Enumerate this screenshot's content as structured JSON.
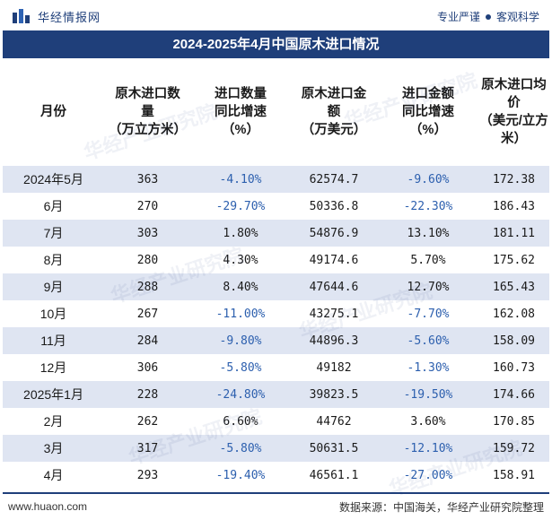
{
  "brand": {
    "logo_text": "华经情报网",
    "slogan_left": "专业严谨",
    "slogan_right": "客观科学"
  },
  "title": "2024-2025年4月中国原木进口情况",
  "columns": [
    "月份",
    "原木进口数量（万立方米）",
    "进口数量同比增速（%）",
    "原木进口金额（万美元）",
    "进口金额同比增速（%）",
    "原木进口均价（美元/立方米）"
  ],
  "header_lines": [
    [
      "月份"
    ],
    [
      "原木进口数",
      "量",
      "（万立方米）"
    ],
    [
      "进口数量",
      "同比增速",
      "（%）"
    ],
    [
      "原木进口金",
      "额",
      "（万美元）"
    ],
    [
      "进口金额",
      "同比增速",
      "（%）"
    ],
    [
      "原木进口均",
      "价",
      "（美元/立方",
      "米）"
    ]
  ],
  "rows": [
    {
      "month": "2024年5月",
      "qty": "363",
      "qty_yoy": "-4.10%",
      "amt": "62574.7",
      "amt_yoy": "-9.60%",
      "price": "172.38"
    },
    {
      "month": "6月",
      "qty": "270",
      "qty_yoy": "-29.70%",
      "amt": "50336.8",
      "amt_yoy": "-22.30%",
      "price": "186.43"
    },
    {
      "month": "7月",
      "qty": "303",
      "qty_yoy": "1.80%",
      "amt": "54876.9",
      "amt_yoy": "13.10%",
      "price": "181.11"
    },
    {
      "month": "8月",
      "qty": "280",
      "qty_yoy": "4.30%",
      "amt": "49174.6",
      "amt_yoy": "5.70%",
      "price": "175.62"
    },
    {
      "month": "9月",
      "qty": "288",
      "qty_yoy": "8.40%",
      "amt": "47644.6",
      "amt_yoy": "12.70%",
      "price": "165.43"
    },
    {
      "month": "10月",
      "qty": "267",
      "qty_yoy": "-11.00%",
      "amt": "43275.1",
      "amt_yoy": "-7.70%",
      "price": "162.08"
    },
    {
      "month": "11月",
      "qty": "284",
      "qty_yoy": "-9.80%",
      "amt": "44896.3",
      "amt_yoy": "-5.60%",
      "price": "158.09"
    },
    {
      "month": "12月",
      "qty": "306",
      "qty_yoy": "-5.80%",
      "amt": "49182",
      "amt_yoy": "-1.30%",
      "price": "160.73"
    },
    {
      "month": "2025年1月",
      "qty": "228",
      "qty_yoy": "-24.80%",
      "amt": "39823.5",
      "amt_yoy": "-19.50%",
      "price": "174.66"
    },
    {
      "month": "2月",
      "qty": "262",
      "qty_yoy": "6.60%",
      "amt": "44762",
      "amt_yoy": "3.60%",
      "price": "170.85"
    },
    {
      "month": "3月",
      "qty": "317",
      "qty_yoy": "-5.80%",
      "amt": "50631.5",
      "amt_yoy": "-12.10%",
      "price": "159.72"
    },
    {
      "month": "4月",
      "qty": "293",
      "qty_yoy": "-19.40%",
      "amt": "46561.1",
      "amt_yoy": "-27.00%",
      "price": "158.91"
    }
  ],
  "footer": {
    "url": "www.huaon.com",
    "source": "数据来源：中国海关，华经产业研究院整理"
  },
  "watermark": "华经产业研究院",
  "colors": {
    "brand_navy": "#1f3f7a",
    "stripe": "#dfe5f2",
    "negative": "#2c5fae"
  }
}
